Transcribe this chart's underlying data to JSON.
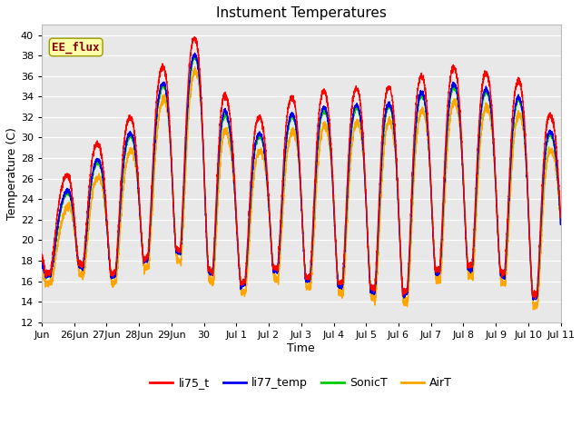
{
  "title": "Instument Temperatures",
  "ylabel": "Temperature (C)",
  "xlabel": "Time",
  "ylim": [
    12,
    41
  ],
  "yticks": [
    12,
    14,
    16,
    18,
    20,
    22,
    24,
    26,
    28,
    30,
    32,
    34,
    36,
    38,
    40
  ],
  "annotation_text": "EE_flux",
  "annotation_color": "#8B0000",
  "annotation_bg": "#FFFFAA",
  "bg_color": "#E8E8E8",
  "line_colors": {
    "li75_t": "#FF0000",
    "li77_temp": "#0000EE",
    "SonicT": "#00CC00",
    "AirT": "#FFA500"
  },
  "x_tick_labels": [
    "Jun",
    "26Jun",
    "27Jun",
    "28Jun",
    "29Jun",
    "30",
    "Jul 1",
    "Jul 2",
    "Jul 3",
    "Jul 4",
    "Jul 5",
    "Jul 6",
    "Jul 7",
    "Jul 8",
    "Jul 9",
    "Jul 10",
    "Jul 11"
  ],
  "n_points": 4800,
  "line_width": 1.0,
  "n_days": 16
}
